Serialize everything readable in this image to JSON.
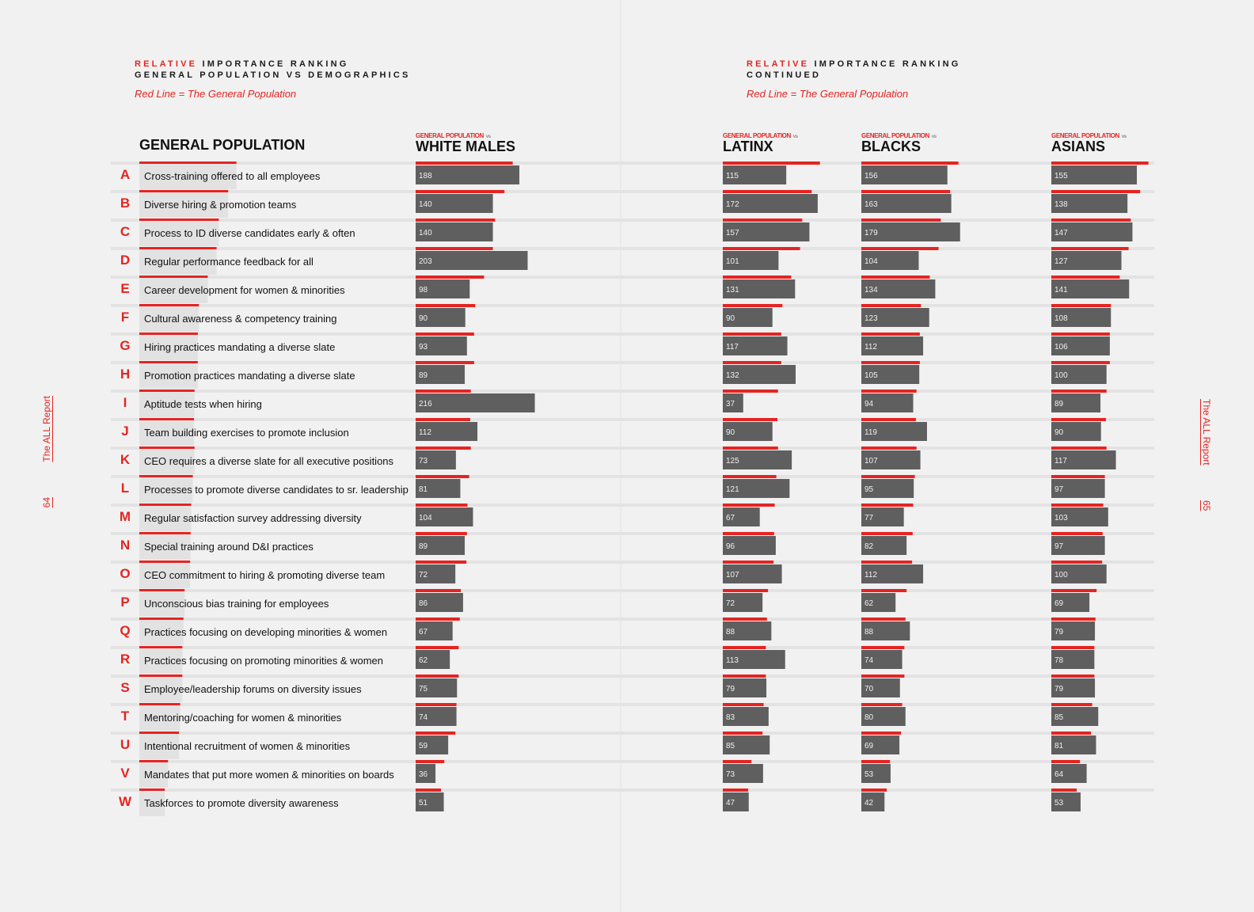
{
  "left_page": {
    "header_red": "RELATIVE",
    "header_rest": " IMPORTANCE RANKING",
    "header_line2": "GENERAL POPULATION VS DEMOGRAPHICS",
    "subtitle": "Red Line = The General Population",
    "side_label": "The ALL Report",
    "page_number": "64"
  },
  "right_page": {
    "header_red": "RELATIVE",
    "header_rest": " IMPORTANCE RANKING",
    "header_line2": "CONTINUED",
    "subtitle": "Red Line = The General Population",
    "side_label": "The ALL Report",
    "page_number": "65"
  },
  "colors": {
    "accent": "#e52421",
    "bar": "#5f5f5f",
    "gp_bar": "#e2e2e2",
    "separator": "#e3e3e3"
  },
  "chart_data": {
    "type": "bar",
    "title": "Relative Importance Ranking — General Population vs Demographics",
    "legend": "Red Line = The General Population",
    "gp_title": "GENERAL POPULATION",
    "compare_prefix": "GENERAL POPULATION",
    "compare_vs": "vs",
    "letters": [
      "A",
      "B",
      "C",
      "D",
      "E",
      "F",
      "G",
      "H",
      "I",
      "J",
      "K",
      "L",
      "M",
      "N",
      "O",
      "P",
      "Q",
      "R",
      "S",
      "T",
      "U",
      "V",
      "W"
    ],
    "categories": [
      "Cross-training offered to all employees",
      "Diverse hiring & promotion teams",
      "Process to ID diverse candidates early & often",
      "Regular performance feedback for all",
      "Career development for women & minorities",
      "Cultural awareness & competency training",
      "Hiring practices mandating a diverse slate",
      "Promotion practices mandating a diverse slate",
      "Aptitude tests when hiring",
      "Team building exercises to promote inclusion",
      "CEO requires a diverse slate for all executive positions",
      "Processes to promote diverse candidates to sr. leadership",
      "Regular satisfaction survey addressing diversity",
      "Special training around D&I practices",
      "CEO commitment to hiring & promoting diverse team",
      "Unconscious bias training for employees",
      "Practices focusing on developing minorities & women",
      "Practices focusing on promoting minorities & women",
      "Employee/leadership forums on diversity issues",
      "Mentoring/coaching for women & minorities",
      "Intentional recruitment of women & minorities",
      "Mandates that put more women & minorities on boards",
      "Taskforces to promote diversity awareness"
    ],
    "general_population": [
      176,
      161,
      144,
      140,
      124,
      108,
      106,
      106,
      100,
      99,
      100,
      97,
      94,
      93,
      92,
      82,
      80,
      78,
      78,
      74,
      72,
      52,
      46
    ],
    "series": [
      {
        "name": "WHITE MALES",
        "values": [
          188,
          140,
          140,
          203,
          98,
          90,
          93,
          89,
          216,
          112,
          73,
          81,
          104,
          89,
          72,
          86,
          67,
          62,
          75,
          74,
          59,
          36,
          51
        ]
      },
      {
        "name": "LATINX",
        "values": [
          115,
          172,
          157,
          101,
          131,
          90,
          117,
          132,
          37,
          90,
          125,
          121,
          67,
          96,
          107,
          72,
          88,
          113,
          79,
          83,
          85,
          73,
          47
        ]
      },
      {
        "name": "BLACKS",
        "values": [
          156,
          163,
          179,
          104,
          134,
          123,
          112,
          105,
          94,
          119,
          107,
          95,
          77,
          82,
          112,
          62,
          88,
          74,
          70,
          80,
          69,
          53,
          42
        ]
      },
      {
        "name": "ASIANS",
        "values": [
          155,
          138,
          147,
          127,
          141,
          108,
          106,
          100,
          89,
          90,
          117,
          97,
          103,
          97,
          100,
          69,
          79,
          78,
          79,
          85,
          81,
          64,
          53
        ]
      }
    ],
    "xlabel": "",
    "ylabel": "",
    "grid": false
  }
}
